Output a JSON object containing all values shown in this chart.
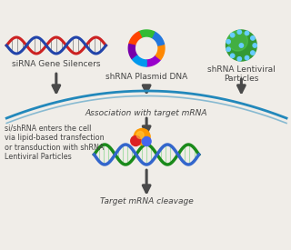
{
  "bg_color": "#f0ede8",
  "labels": {
    "sirna": "siRNA Gene Silencers",
    "shrna_plasmid": "shRNA Plasmid DNA",
    "shrna_lenti": "shRNA Lentiviral\nParticles",
    "association": "Association with target mRNA",
    "cleavage": "Target mRNA cleavage",
    "cell_entry": "si/shRNA enters the cell\nvia lipid-based transfection\nor transduction with shRNA\nLentiviral Particles"
  },
  "arrow_color": "#4a4a4a",
  "dna_colors": {
    "strand1": "#cc2222",
    "strand2": "#2244aa"
  },
  "arc_color": "#2288bb",
  "text_color": "#444444",
  "small_fontsize": 6.5,
  "tiny_fontsize": 5.8
}
